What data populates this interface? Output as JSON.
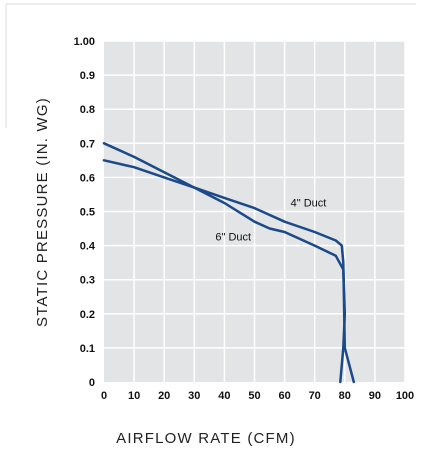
{
  "chart_data": {
    "type": "line",
    "title": "",
    "xlabel": "AIRFLOW RATE (CFM)",
    "ylabel": "STATIC PRESSURE (IN. WG)",
    "xlim": [
      0,
      100
    ],
    "ylim": [
      0,
      1.0
    ],
    "x_ticks": [
      0,
      10,
      20,
      30,
      40,
      50,
      60,
      70,
      80,
      90,
      100
    ],
    "y_ticks": [
      0,
      0.1,
      0.2,
      0.3,
      0.4,
      0.5,
      0.6,
      0.7,
      0.8,
      0.9,
      1.0
    ],
    "x_tick_labels": [
      "0",
      "10",
      "20",
      "30",
      "40",
      "50",
      "60",
      "70",
      "80",
      "90",
      "100"
    ],
    "y_tick_labels": [
      "0",
      "0.1",
      "0.2",
      "0.3",
      "0.4",
      "0.5",
      "0.6",
      "0.7",
      "0.8",
      "0.9",
      "1.00"
    ],
    "grid": true,
    "line_color": "#1a4a8a",
    "plot_background": "#e3e4e6",
    "series": [
      {
        "name": "4\" Duct",
        "points": [
          [
            0,
            0.65
          ],
          [
            10,
            0.63
          ],
          [
            20,
            0.6
          ],
          [
            30,
            0.57
          ],
          [
            40,
            0.54
          ],
          [
            50,
            0.51
          ],
          [
            60,
            0.47
          ],
          [
            70,
            0.44
          ],
          [
            77,
            0.415
          ],
          [
            79,
            0.4
          ],
          [
            79.5,
            0.35
          ],
          [
            79.8,
            0.2
          ],
          [
            80,
            0.1
          ],
          [
            81.5,
            0.05
          ],
          [
            83,
            0
          ]
        ]
      },
      {
        "name": "6\" Duct",
        "points": [
          [
            0,
            0.7
          ],
          [
            10,
            0.66
          ],
          [
            20,
            0.615
          ],
          [
            30,
            0.57
          ],
          [
            40,
            0.525
          ],
          [
            50,
            0.47
          ],
          [
            55,
            0.45
          ],
          [
            60,
            0.44
          ],
          [
            70,
            0.4
          ],
          [
            77,
            0.37
          ],
          [
            79.5,
            0.33
          ],
          [
            80,
            0.2
          ],
          [
            79.5,
            0.1
          ],
          [
            78.5,
            0
          ]
        ]
      }
    ]
  }
}
